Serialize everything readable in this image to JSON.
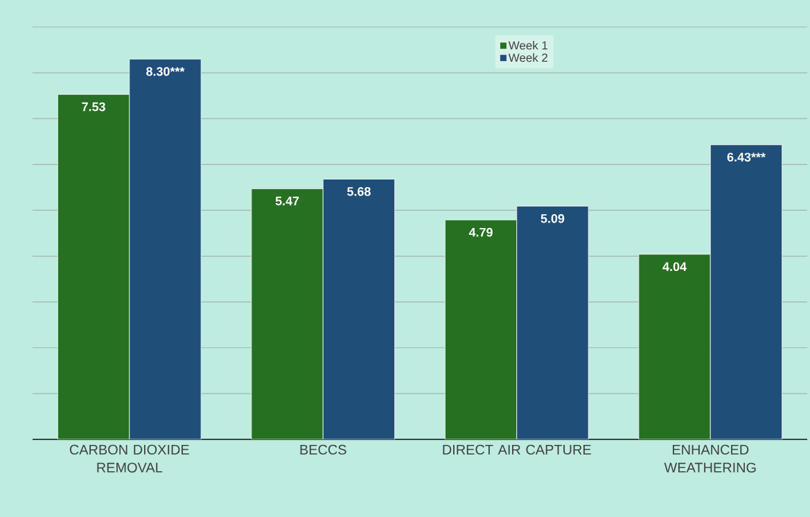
{
  "chart_data": {
    "type": "bar",
    "categories": [
      "CARBON DIOXIDE REMOVAL",
      "BECCS",
      "DIRECT AIR CAPTURE",
      "ENHANCED WEATHERING"
    ],
    "series": [
      {
        "name": "Week 1",
        "color": "#267021",
        "values": [
          7.53,
          5.47,
          4.79,
          4.04
        ],
        "value_labels": [
          "7.53",
          "5.47",
          "4.79",
          "4.04"
        ]
      },
      {
        "name": "Week 2",
        "color": "#1f4e79",
        "values": [
          8.3,
          5.68,
          5.09,
          6.43
        ],
        "value_labels": [
          "8.30***",
          "5.68",
          "5.09",
          "6.43***"
        ]
      }
    ],
    "ylim": [
      0,
      9
    ],
    "yticks": [
      {
        "value": 0,
        "label": null
      },
      {
        "value": 1,
        "label": null
      },
      {
        "value": 2,
        "label": null
      },
      {
        "value": 3,
        "label": null
      },
      {
        "value": 4,
        "label": null
      },
      {
        "value": 5,
        "label": null
      },
      {
        "value": 6,
        "label": null
      },
      {
        "value": 7,
        "label": null
      },
      {
        "value": 8,
        "label": null
      },
      {
        "value": 9,
        "label": null
      }
    ],
    "tick_labels": "x",
    "grid": "y",
    "legend": "top"
  }
}
